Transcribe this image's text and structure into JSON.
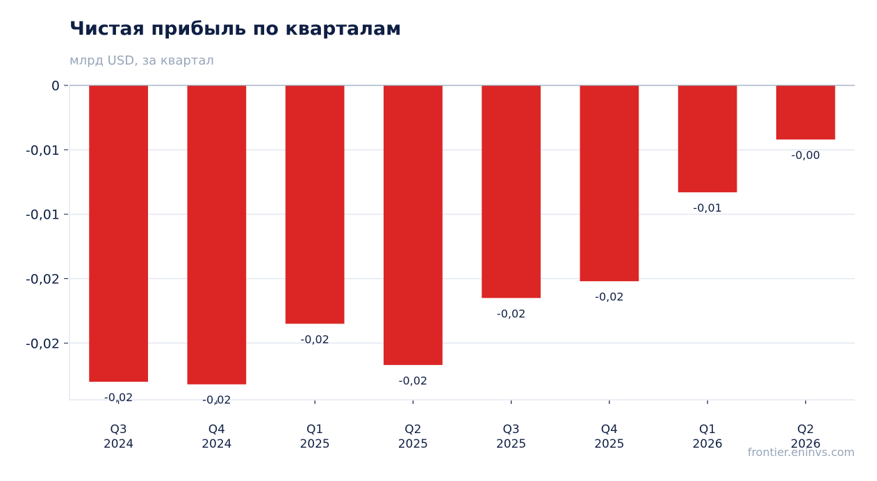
{
  "chart_data": {
    "type": "bar",
    "title": "Чистая прибыль по кварталам",
    "subtitle": "млрд USD, за квартал",
    "xlabel": "",
    "ylabel": "",
    "categories": [
      [
        "Q3",
        "2024"
      ],
      [
        "Q4",
        "2024"
      ],
      [
        "Q1",
        "2025"
      ],
      [
        "Q2",
        "2025"
      ],
      [
        "Q3",
        "2025"
      ],
      [
        "Q4",
        "2025"
      ],
      [
        "Q1",
        "2026"
      ],
      [
        "Q2",
        "2026"
      ]
    ],
    "values": [
      -0.023,
      -0.0232,
      -0.0185,
      -0.0217,
      -0.0165,
      -0.0152,
      -0.0083,
      -0.0042
    ],
    "data_labels": [
      "-0,02",
      "-0,02",
      "-0,02",
      "-0,02",
      "-0,02",
      "-0,02",
      "-0,01",
      "-0,00"
    ],
    "yticks": [
      {
        "value": 0,
        "label": "0"
      },
      {
        "value": -0.005,
        "label": "-0,01"
      },
      {
        "value": -0.01,
        "label": "-0,01"
      },
      {
        "value": -0.015,
        "label": "-0,02"
      },
      {
        "value": -0.02,
        "label": "-0,02"
      }
    ],
    "ylim": [
      -0.0244,
      0
    ],
    "grid": true,
    "colors": {
      "bar": "#dc2626",
      "grid": "#e3e8f0",
      "axis": "#97a6ba",
      "text": "#0f1f44",
      "muted": "#97a6ba"
    }
  },
  "watermark": "frontier.eninvs.com"
}
